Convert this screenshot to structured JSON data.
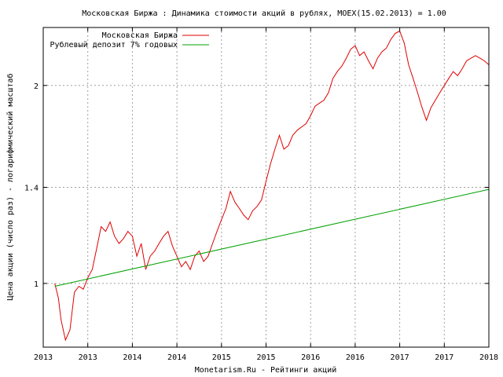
{
  "chart_data": {
    "type": "line",
    "title": "Московская Биржа : Динамика стоимости акций в рублях, MOEX(15.02.2013) = 1.00",
    "xlabel": "Monetarism.Ru - Рейтинги акций",
    "ylabel": "Цена акции (число раз) - логарифмический масштаб",
    "y_scale": "log",
    "ylim": [
      0.8,
      2.45
    ],
    "xlim": [
      2013.0,
      2018.0
    ],
    "y_ticks": [
      1,
      1.4,
      2
    ],
    "y_tick_labels": [
      "1",
      "1.4",
      "2"
    ],
    "x_ticks": [
      2013.0,
      2013.5,
      2014.0,
      2014.5,
      2015.0,
      2015.5,
      2016.0,
      2016.5,
      2017.0,
      2017.5,
      2018.0
    ],
    "x_tick_labels": [
      "2013",
      "2013",
      "2014",
      "2014",
      "2015",
      "2015",
      "2016",
      "2016",
      "2017",
      "2017",
      "2018"
    ],
    "grid": true,
    "legend_position": "top-left",
    "series": [
      {
        "name": "Московская Биржа",
        "color": "#e00000",
        "x": [
          2013.13,
          2013.17,
          2013.2,
          2013.25,
          2013.3,
          2013.35,
          2013.4,
          2013.45,
          2013.5,
          2013.55,
          2013.6,
          2013.65,
          2013.7,
          2013.75,
          2013.8,
          2013.85,
          2013.9,
          2013.95,
          2014.0,
          2014.05,
          2014.1,
          2014.15,
          2014.2,
          2014.25,
          2014.3,
          2014.35,
          2014.4,
          2014.45,
          2014.5,
          2014.55,
          2014.6,
          2014.65,
          2014.7,
          2014.75,
          2014.8,
          2014.85,
          2014.9,
          2014.95,
          2015.0,
          2015.05,
          2015.1,
          2015.15,
          2015.2,
          2015.25,
          2015.3,
          2015.35,
          2015.4,
          2015.45,
          2015.5,
          2015.55,
          2015.6,
          2015.65,
          2015.7,
          2015.75,
          2015.8,
          2015.85,
          2015.9,
          2015.95,
          2016.0,
          2016.05,
          2016.1,
          2016.15,
          2016.2,
          2016.25,
          2016.3,
          2016.35,
          2016.4,
          2016.45,
          2016.5,
          2016.55,
          2016.6,
          2016.65,
          2016.7,
          2016.75,
          2016.8,
          2016.85,
          2016.9,
          2016.95,
          2017.0,
          2017.05,
          2017.1,
          2017.15,
          2017.2,
          2017.25,
          2017.3,
          2017.35,
          2017.4,
          2017.45,
          2017.5,
          2017.55,
          2017.6,
          2017.65,
          2017.7,
          2017.75,
          2017.8,
          2017.85,
          2017.9,
          2017.95,
          2018.0
        ],
        "values": [
          1.0,
          0.95,
          0.88,
          0.82,
          0.85,
          0.97,
          0.99,
          0.98,
          1.02,
          1.05,
          1.13,
          1.22,
          1.2,
          1.24,
          1.18,
          1.15,
          1.17,
          1.2,
          1.18,
          1.1,
          1.15,
          1.05,
          1.1,
          1.12,
          1.15,
          1.18,
          1.2,
          1.14,
          1.1,
          1.06,
          1.08,
          1.05,
          1.1,
          1.12,
          1.08,
          1.1,
          1.15,
          1.2,
          1.25,
          1.3,
          1.38,
          1.33,
          1.3,
          1.27,
          1.25,
          1.29,
          1.31,
          1.34,
          1.43,
          1.52,
          1.6,
          1.68,
          1.6,
          1.62,
          1.68,
          1.71,
          1.73,
          1.75,
          1.8,
          1.86,
          1.88,
          1.9,
          1.95,
          2.05,
          2.1,
          2.14,
          2.2,
          2.27,
          2.3,
          2.22,
          2.25,
          2.18,
          2.12,
          2.2,
          2.25,
          2.28,
          2.35,
          2.4,
          2.42,
          2.32,
          2.15,
          2.05,
          1.95,
          1.85,
          1.77,
          1.85,
          1.9,
          1.95,
          2.0,
          2.05,
          2.1,
          2.07,
          2.12,
          2.18,
          2.2,
          2.22,
          2.2,
          2.18,
          2.15
        ]
      },
      {
        "name": "Рублевый депозит 7% годовых",
        "color": "#00a000",
        "x": [
          2013.13,
          2018.0
        ],
        "values": [
          0.99,
          1.39
        ]
      }
    ]
  }
}
